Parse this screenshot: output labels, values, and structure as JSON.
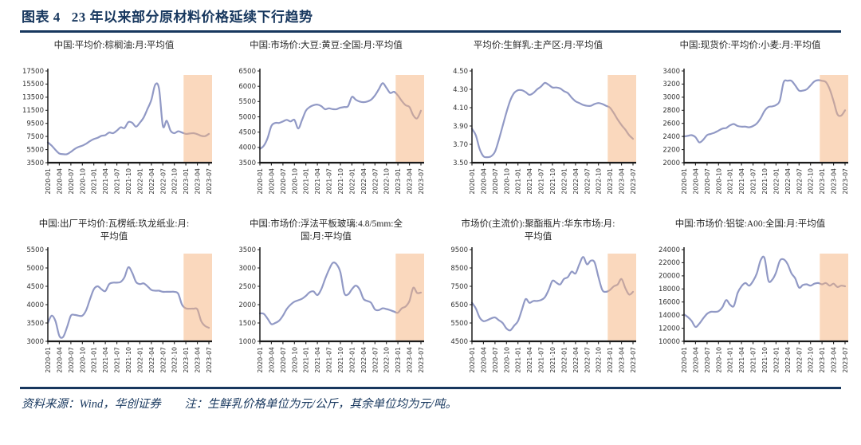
{
  "header": {
    "label": "图表 4",
    "title": "23 年以来部分原材料价格延续下行趋势"
  },
  "footer": {
    "source": "资料来源：Wind，华创证券",
    "note": "注：生鲜乳价格单位为元/公斤，其余单位均为元/吨。"
  },
  "colors": {
    "accent": "#17375E",
    "line": "#9199C5",
    "band": "#F6B17B",
    "axis": "#1a1a1a"
  },
  "x_labels": [
    "2020-01",
    "2020-04",
    "2020-07",
    "2020-10",
    "2021-01",
    "2021-04",
    "2021-07",
    "2021-10",
    "2022-01",
    "2022-04",
    "2022-07",
    "2022-10",
    "2023-01",
    "2023-04",
    "2023-07"
  ],
  "highlight": {
    "start_label": "2023-01",
    "end_label": "2023-07"
  },
  "chart_data": [
    {
      "type": "line",
      "title": "中国:平均价:棕榈油:月:平均值",
      "ylim": [
        3500,
        17500
      ],
      "y_ticks": [
        "17500",
        "15500",
        "13500",
        "11500",
        "9500",
        "7500",
        "5500",
        "3500"
      ],
      "values": [
        6600,
        6100,
        5450,
        4900,
        4800,
        4800,
        5150,
        5600,
        5900,
        6100,
        6400,
        6800,
        7100,
        7300,
        7600,
        7700,
        8100,
        8000,
        8400,
        8900,
        8800,
        9700,
        9600,
        9000,
        9600,
        10400,
        11700,
        13100,
        15400,
        14800,
        9100,
        9900,
        8400,
        8000,
        8300,
        8100,
        7900,
        7950,
        8000,
        7850,
        7600,
        7550,
        7900
      ]
    },
    {
      "type": "line",
      "title": "中国:市场价:大豆:黄豆:全国:月:平均值",
      "ylim": [
        3500,
        6500
      ],
      "y_ticks": [
        "6500",
        "6000",
        "5500",
        "5000",
        "4500",
        "4000",
        "3500"
      ],
      "values": [
        3950,
        4050,
        4300,
        4700,
        4800,
        4800,
        4850,
        4900,
        4850,
        4900,
        4620,
        4900,
        5200,
        5320,
        5380,
        5400,
        5350,
        5250,
        5280,
        5250,
        5250,
        5300,
        5320,
        5350,
        5650,
        5560,
        5500,
        5480,
        5500,
        5560,
        5700,
        5900,
        6100,
        5950,
        5780,
        5820,
        5700,
        5520,
        5380,
        5320,
        5050,
        4950,
        5200
      ]
    },
    {
      "type": "line",
      "title": "平均价:生鲜乳:主产区:月:平均值",
      "ylim": [
        3.5,
        4.5
      ],
      "y_ticks": [
        "4.50",
        "4.30",
        "4.10",
        "3.90",
        "3.70",
        "3.50"
      ],
      "values": [
        3.87,
        3.8,
        3.65,
        3.57,
        3.56,
        3.57,
        3.62,
        3.75,
        3.9,
        4.05,
        4.18,
        4.26,
        4.29,
        4.29,
        4.27,
        4.24,
        4.26,
        4.3,
        4.33,
        4.37,
        4.35,
        4.32,
        4.32,
        4.31,
        4.28,
        4.26,
        4.21,
        4.17,
        4.15,
        4.13,
        4.12,
        4.12,
        4.14,
        4.15,
        4.14,
        4.12,
        4.1,
        4.04,
        3.97,
        3.91,
        3.86,
        3.8,
        3.76
      ]
    },
    {
      "type": "line",
      "title": "中国:现货价:平均价:小麦:月:平均值",
      "ylim": [
        2000,
        3400
      ],
      "y_ticks": [
        "3400",
        "3200",
        "3000",
        "2800",
        "2600",
        "2400",
        "2200",
        "2000"
      ],
      "values": [
        2400,
        2410,
        2420,
        2390,
        2310,
        2350,
        2420,
        2440,
        2460,
        2490,
        2520,
        2530,
        2570,
        2590,
        2560,
        2550,
        2550,
        2540,
        2560,
        2600,
        2680,
        2790,
        2850,
        2860,
        2880,
        2950,
        3230,
        3250,
        3250,
        3180,
        3100,
        3100,
        3120,
        3180,
        3240,
        3260,
        3250,
        3230,
        3120,
        2940,
        2740,
        2720,
        2800
      ]
    },
    {
      "type": "line",
      "title": "中国:出厂平均价:瓦楞纸:玖龙纸业:月:平均值",
      "ylim": [
        3000,
        5500
      ],
      "y_ticks": [
        "5500",
        "5000",
        "4500",
        "4000",
        "3500",
        "3000"
      ],
      "values": [
        3500,
        3700,
        3550,
        3150,
        3120,
        3380,
        3700,
        3720,
        3700,
        3700,
        3850,
        4150,
        4420,
        4500,
        4420,
        4370,
        4560,
        4600,
        4600,
        4620,
        4750,
        5020,
        4870,
        4620,
        4560,
        4580,
        4500,
        4400,
        4380,
        4380,
        4350,
        4350,
        4350,
        4350,
        4300,
        4000,
        3900,
        3890,
        3890,
        3870,
        3550,
        3420,
        3370
      ]
    },
    {
      "type": "line",
      "title": "中国:市场价:浮法平板玻璃:4.8/5mm:全国:月:平均值",
      "ylim": [
        1000,
        3500
      ],
      "y_ticks": [
        "3500",
        "3000",
        "2500",
        "2000",
        "1500",
        "1000"
      ],
      "values": [
        1760,
        1750,
        1620,
        1470,
        1500,
        1560,
        1700,
        1880,
        2000,
        2080,
        2120,
        2160,
        2240,
        2340,
        2360,
        2260,
        2420,
        2700,
        2950,
        3140,
        3100,
        2880,
        2320,
        2280,
        2420,
        2520,
        2420,
        2160,
        2100,
        2050,
        1870,
        1850,
        1900,
        1880,
        1850,
        1810,
        1780,
        1900,
        1950,
        2100,
        2460,
        2320,
        2330
      ]
    },
    {
      "type": "line",
      "title": "市场价(主流价):聚酯瓶片:华东市场:月:平均值",
      "ylim": [
        4500,
        9500
      ],
      "y_ticks": [
        "9500",
        "8500",
        "7500",
        "6500",
        "5500",
        "4500"
      ],
      "values": [
        6600,
        6300,
        5800,
        5600,
        5650,
        5750,
        5800,
        5650,
        5500,
        5200,
        5100,
        5350,
        5600,
        6200,
        6800,
        6600,
        6700,
        6700,
        6750,
        6900,
        7300,
        7800,
        7700,
        7600,
        7900,
        8000,
        8300,
        8200,
        8700,
        9100,
        8700,
        8900,
        8800,
        8000,
        7300,
        7200,
        7300,
        7500,
        7600,
        7900,
        7400,
        7050,
        7200
      ]
    },
    {
      "type": "line",
      "title": "中国:市场价:铝锭:A00:全国:月:平均值",
      "ylim": [
        10000,
        24000
      ],
      "y_ticks": [
        "24000",
        "22000",
        "20000",
        "18000",
        "16000",
        "14000",
        "12000",
        "10000"
      ],
      "values": [
        14100,
        13700,
        13100,
        12200,
        12700,
        13500,
        14200,
        14500,
        14500,
        14600,
        15200,
        16300,
        15600,
        15400,
        17400,
        18400,
        18900,
        18500,
        19200,
        20400,
        22400,
        22700,
        19300,
        19400,
        20500,
        22300,
        22500,
        21800,
        20400,
        19600,
        18200,
        18600,
        18700,
        18500,
        18800,
        18900,
        18700,
        18900,
        18500,
        18800,
        18300,
        18500,
        18400
      ]
    }
  ]
}
